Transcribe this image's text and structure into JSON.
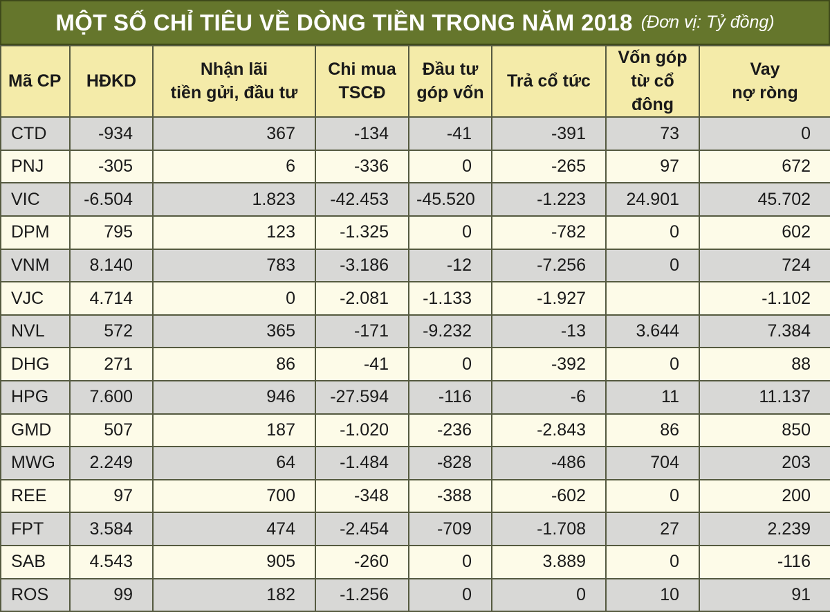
{
  "header": {
    "title": "MỘT SỐ CHỈ TIÊU VỀ DÒNG TIỀN TRONG NĂM 2018",
    "unit": "(Đơn vị: Tỷ đồng)"
  },
  "table": {
    "columns": [
      [
        "Mã CP"
      ],
      [
        "HĐKD"
      ],
      [
        "Nhận lãi",
        "tiền gửi, đầu tư"
      ],
      [
        "Chi mua",
        "TSCĐ"
      ],
      [
        "Đầu tư",
        "góp vốn"
      ],
      [
        "Trả cổ tức"
      ],
      [
        "Vốn góp",
        "từ cổ đông"
      ],
      [
        "Vay",
        "nợ ròng"
      ]
    ],
    "rows": [
      [
        "CTD",
        "-934",
        "367",
        "-134",
        "-41",
        "-391",
        "73",
        "0"
      ],
      [
        "PNJ",
        "-305",
        "6",
        "-336",
        "0",
        "-265",
        "97",
        "672"
      ],
      [
        "VIC",
        "-6.504",
        "1.823",
        "-42.453",
        "-45.520",
        "-1.223",
        "24.901",
        "45.702"
      ],
      [
        "DPM",
        "795",
        "123",
        "-1.325",
        "0",
        "-782",
        "0",
        "602"
      ],
      [
        "VNM",
        "8.140",
        "783",
        "-3.186",
        "-12",
        "-7.256",
        "0",
        "724"
      ],
      [
        "VJC",
        "4.714",
        "0",
        "-2.081",
        "-1.133",
        "-1.927",
        null,
        "-1.102"
      ],
      [
        "NVL",
        "572",
        "365",
        "-171",
        "-9.232",
        "-13",
        "3.644",
        "7.384"
      ],
      [
        "DHG",
        "271",
        "86",
        "-41",
        "0",
        "-392",
        "0",
        "88"
      ],
      [
        "HPG",
        "7.600",
        "946",
        "-27.594",
        "-116",
        "-6",
        "11",
        "11.137"
      ],
      [
        "GMD",
        "507",
        "187",
        "-1.020",
        "-236",
        "-2.843",
        "86",
        "850"
      ],
      [
        "MWG",
        "2.249",
        "64",
        "-1.484",
        "-828",
        "-486",
        "704",
        "203"
      ],
      [
        "REE",
        "97",
        "700",
        "-348",
        "-388",
        "-602",
        "0",
        "200"
      ],
      [
        "FPT",
        "3.584",
        "474",
        "-2.454",
        "-709",
        "-1.708",
        "27",
        "2.239"
      ],
      [
        "SAB",
        "4.543",
        "905",
        "-260",
        "0",
        "3.889",
        "0",
        "-116"
      ],
      [
        "ROS",
        "99",
        "182",
        "-1.256",
        "0",
        "0",
        "10",
        "91"
      ]
    ]
  }
}
